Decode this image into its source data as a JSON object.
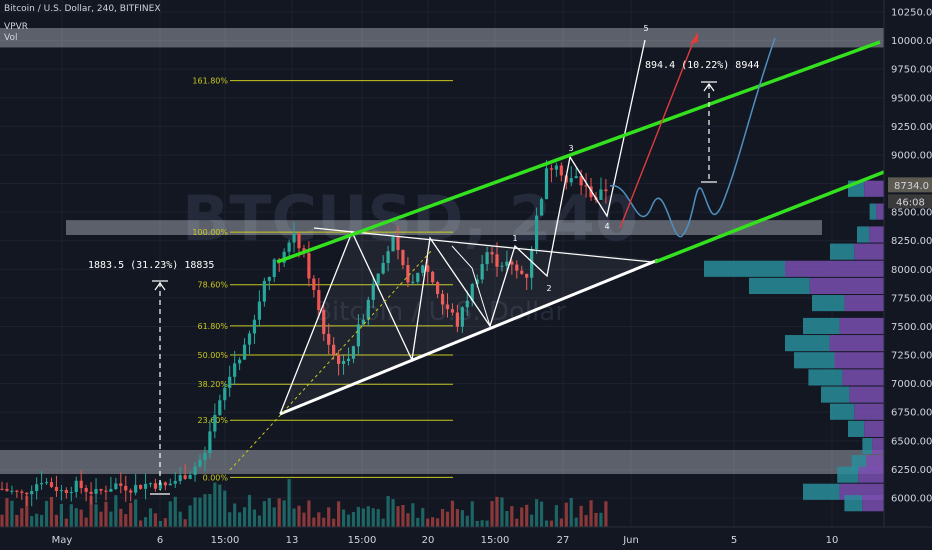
{
  "header": {
    "symbol": "Bitcoin / U.S. Dollar, 240, BITFINEX",
    "indicator1": "VPVR",
    "indicator2": "Vol"
  },
  "watermark": {
    "big": "BTCUSD, 240",
    "small": "Bitcoin / U.S. Dollar"
  },
  "price_labels": {
    "current": "8734.0",
    "countdown": "46:08"
  },
  "annotations": {
    "left_move": "1883.5 (31.23%) 18835",
    "right_move": "894.4 (10.22%) 8944"
  },
  "fib_levels": [
    {
      "label": "161.80%",
      "price": 9650
    },
    {
      "label": "100.00%",
      "price": 8325
    },
    {
      "label": "78.60%",
      "price": 7865
    },
    {
      "label": "61.80%",
      "price": 7505
    },
    {
      "label": "50.00%",
      "price": 7250
    },
    {
      "label": "38.20%",
      "price": 6995
    },
    {
      "label": "23.60%",
      "price": 6680
    },
    {
      "label": "0.00%",
      "price": 6180
    }
  ],
  "wave_labels": [
    "1",
    "2",
    "3",
    "4",
    "5"
  ],
  "colors": {
    "background": "#131722",
    "up": "#26a69a",
    "down": "#ef5350",
    "channel": "#33e11e",
    "triangle": "#ffffff",
    "fib": "#c8c81e",
    "projection": "#4f8fbf",
    "arrow": "#e03c3c",
    "zone": "#d5d8df"
  },
  "chart_data": {
    "type": "candlestick",
    "title": "Bitcoin / U.S. Dollar, 240, BITFINEX",
    "x_ticks": [
      "May",
      "6",
      "15:00",
      "13",
      "15:00",
      "20",
      "15:00",
      "27",
      "Jun",
      "5",
      "10"
    ],
    "y_ticks": [
      6000,
      6250,
      6500,
      6750,
      7000,
      7250,
      7500,
      7750,
      8000,
      8250,
      8500,
      8750,
      9000,
      9250,
      9500,
      9750,
      10000,
      10250
    ],
    "ylim": [
      5820,
      10320
    ],
    "last_price": 8734.0,
    "price_path": [
      [
        0,
        6080
      ],
      [
        4,
        6030
      ],
      [
        8,
        6160
      ],
      [
        12,
        6060
      ],
      [
        15,
        6110
      ],
      [
        19,
        6040
      ],
      [
        23,
        6120
      ],
      [
        26,
        6090
      ],
      [
        30,
        6130
      ],
      [
        33,
        6100
      ],
      [
        36,
        6180
      ],
      [
        38,
        6230
      ],
      [
        41,
        6380
      ],
      [
        43,
        6700
      ],
      [
        45,
        6950
      ],
      [
        47,
        7180
      ],
      [
        49,
        7300
      ],
      [
        51,
        7550
      ],
      [
        53,
        7900
      ],
      [
        55,
        8050
      ],
      [
        57,
        8150
      ],
      [
        59,
        8320
      ],
      [
        61,
        8100
      ],
      [
        63,
        7800
      ],
      [
        65,
        7450
      ],
      [
        67,
        7250
      ],
      [
        69,
        7160
      ],
      [
        71,
        7350
      ],
      [
        73,
        7600
      ],
      [
        75,
        7900
      ],
      [
        77,
        8100
      ],
      [
        79,
        8250
      ],
      [
        81,
        8000
      ],
      [
        83,
        7850
      ],
      [
        85,
        8050
      ],
      [
        87,
        7900
      ],
      [
        89,
        7700
      ],
      [
        91,
        7600
      ],
      [
        92,
        7520
      ],
      [
        94,
        7750
      ],
      [
        96,
        7950
      ],
      [
        98,
        8150
      ],
      [
        100,
        8060
      ],
      [
        102,
        8050
      ],
      [
        104,
        7980
      ],
      [
        106,
        7950
      ],
      [
        108,
        8450
      ],
      [
        110,
        8850
      ],
      [
        112,
        8950
      ],
      [
        114,
        8760
      ],
      [
        116,
        8800
      ],
      [
        118,
        8700
      ],
      [
        120,
        8620
      ],
      [
        122,
        8700
      ]
    ],
    "volume_profile": [
      {
        "price": 8700,
        "volume": 0.2
      },
      {
        "price": 8500,
        "volume": 0.08
      },
      {
        "price": 8300,
        "volume": 0.15
      },
      {
        "price": 8150,
        "volume": 0.3
      },
      {
        "price": 8000,
        "volume": 1.0
      },
      {
        "price": 7850,
        "volume": 0.75
      },
      {
        "price": 7700,
        "volume": 0.4
      },
      {
        "price": 7500,
        "volume": 0.45
      },
      {
        "price": 7350,
        "volume": 0.55
      },
      {
        "price": 7200,
        "volume": 0.5
      },
      {
        "price": 7050,
        "volume": 0.42
      },
      {
        "price": 6900,
        "volume": 0.35
      },
      {
        "price": 6750,
        "volume": 0.3
      },
      {
        "price": 6600,
        "volume": 0.2
      },
      {
        "price": 6450,
        "volume": 0.12
      },
      {
        "price": 6300,
        "volume": 0.18
      },
      {
        "price": 6200,
        "volume": 0.26
      },
      {
        "price": 6050,
        "volume": 0.45
      },
      {
        "price": 5950,
        "volume": 0.22
      }
    ]
  }
}
